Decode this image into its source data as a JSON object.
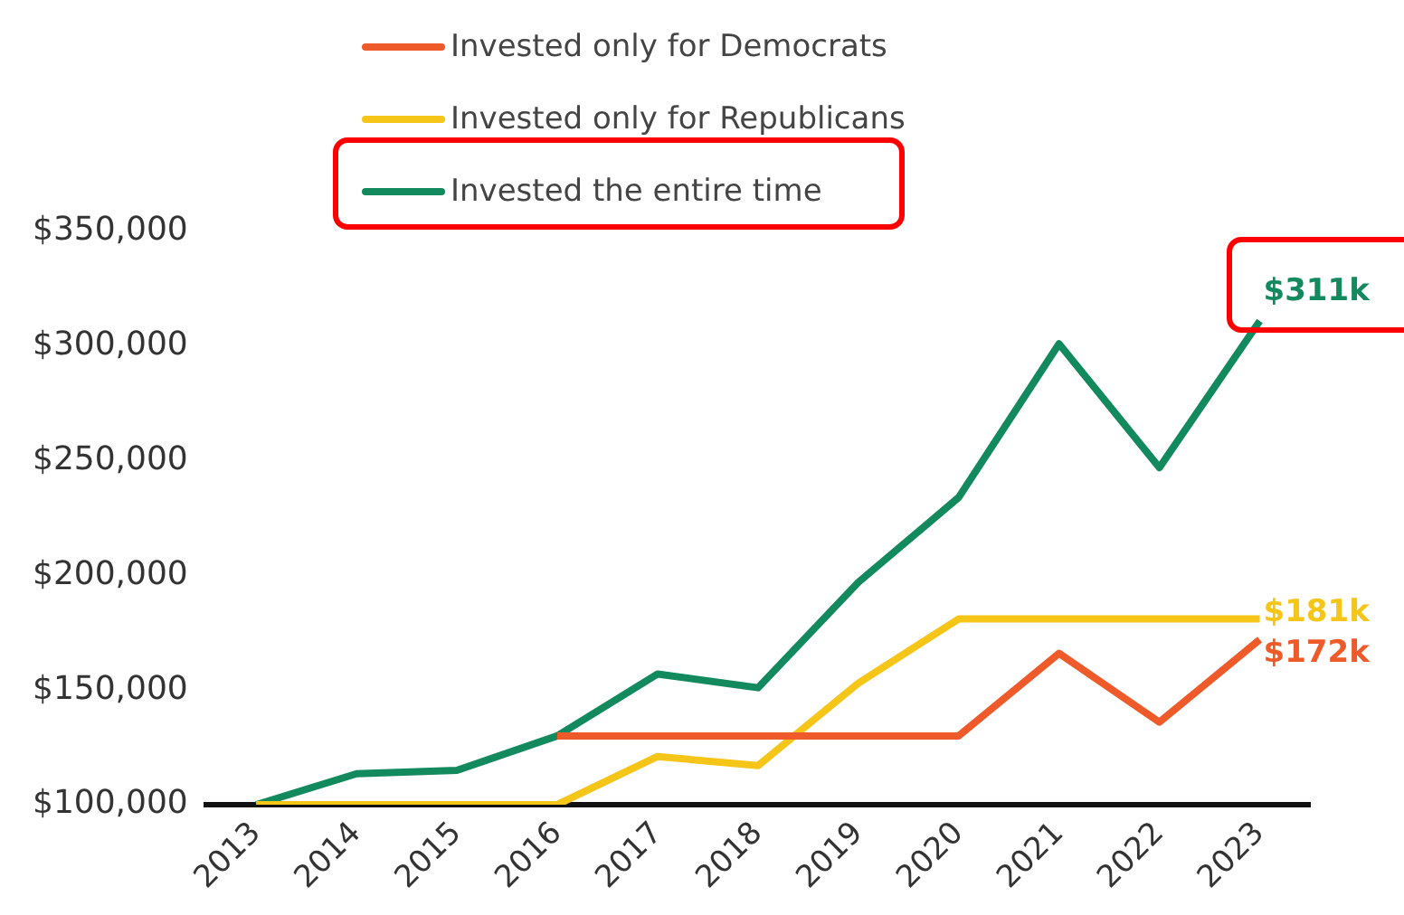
{
  "chart_data": {
    "type": "line",
    "categories": [
      "2013",
      "2014",
      "2015",
      "2016",
      "2017",
      "2018",
      "2019",
      "2020",
      "2021",
      "2022",
      "2023"
    ],
    "series": [
      {
        "name": "Invested only for Democrats",
        "color": "#ee5a2a",
        "values": [
          null,
          null,
          null,
          130000,
          130000,
          130000,
          130000,
          130000,
          166000,
          136000,
          172000
        ],
        "value_labels": [
          null,
          null,
          null,
          null,
          null,
          null,
          null,
          null,
          null,
          null,
          "$172k"
        ]
      },
      {
        "name": "Invested only for Republicans",
        "color": "#f5c518",
        "values": [
          100000,
          100000,
          100000,
          100000,
          121000,
          117000,
          153000,
          181000,
          181000,
          181000,
          181000
        ],
        "value_labels": [
          null,
          null,
          null,
          null,
          null,
          null,
          null,
          null,
          null,
          null,
          "$181k"
        ]
      },
      {
        "name": "Invested the entire time",
        "color": "#138a5e",
        "values": [
          100000,
          113500,
          115000,
          130000,
          157000,
          151000,
          197000,
          234000,
          301000,
          247000,
          311000
        ],
        "value_labels": [
          null,
          null,
          null,
          null,
          null,
          null,
          null,
          null,
          null,
          null,
          "$311k"
        ]
      }
    ],
    "ylim": [
      100000,
      350000
    ],
    "yticks": [
      {
        "value": 100000,
        "label": "$100,000"
      },
      {
        "value": 150000,
        "label": "$150,000"
      },
      {
        "value": 200000,
        "label": "$200,000"
      },
      {
        "value": 250000,
        "label": "$250,000"
      },
      {
        "value": 300000,
        "label": "$300,000"
      },
      {
        "value": 350000,
        "label": "$350,000"
      }
    ],
    "grid": false,
    "legend": "top left",
    "marker": "none",
    "line_style": "solid"
  }
}
